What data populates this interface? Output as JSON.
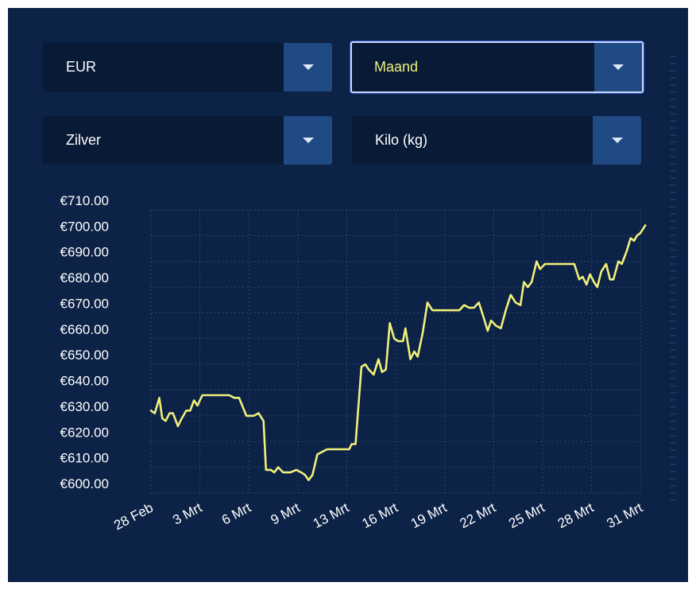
{
  "controls": {
    "currency": "EUR",
    "period": "Maand",
    "metal": "Zilver",
    "unit": "Kilo (kg)"
  },
  "colors": {
    "panel": "#0c2246",
    "line": "#f0f07a",
    "grid": "#2a4a72",
    "accent_button": "#1f4a83"
  },
  "icons": [
    "chevron-down-icon"
  ],
  "chart_data": {
    "type": "line",
    "title": "",
    "xlabel": "",
    "ylabel": "",
    "ylim": [
      600,
      710
    ],
    "grid": true,
    "legend": "none",
    "y_ticks": [
      "€600.00",
      "€610.00",
      "€620.00",
      "€630.00",
      "€640.00",
      "€650.00",
      "€660.00",
      "€670.00",
      "€680.00",
      "€690.00",
      "€700.00",
      "€710.00"
    ],
    "x_ticks": [
      "28 Feb",
      "3 Mrt",
      "6 Mrt",
      "9 Mrt",
      "13 Mrt",
      "16 Mrt",
      "19 Mrt",
      "22 Mrt",
      "25 Mrt",
      "28 Mrt",
      "31 Mrt"
    ],
    "x_tick_positions": [
      0,
      1,
      2,
      3,
      4,
      5,
      6,
      7,
      8,
      9,
      10
    ],
    "series": [
      {
        "name": "",
        "points": [
          [
            0.0,
            632
          ],
          [
            0.08,
            631
          ],
          [
            0.17,
            637
          ],
          [
            0.23,
            629
          ],
          [
            0.3,
            628
          ],
          [
            0.38,
            631
          ],
          [
            0.45,
            631
          ],
          [
            0.55,
            626
          ],
          [
            0.63,
            629
          ],
          [
            0.72,
            632
          ],
          [
            0.8,
            632
          ],
          [
            0.88,
            636
          ],
          [
            0.95,
            634
          ],
          [
            1.05,
            638
          ],
          [
            1.2,
            638
          ],
          [
            1.4,
            638
          ],
          [
            1.6,
            638
          ],
          [
            1.7,
            637
          ],
          [
            1.8,
            637
          ],
          [
            1.95,
            630
          ],
          [
            2.1,
            630
          ],
          [
            2.2,
            631
          ],
          [
            2.3,
            628
          ],
          [
            2.35,
            609
          ],
          [
            2.45,
            609
          ],
          [
            2.52,
            608
          ],
          [
            2.6,
            610
          ],
          [
            2.7,
            608
          ],
          [
            2.85,
            608
          ],
          [
            2.97,
            609
          ],
          [
            3.07,
            608
          ],
          [
            3.15,
            607
          ],
          [
            3.22,
            605
          ],
          [
            3.3,
            607
          ],
          [
            3.4,
            615
          ],
          [
            3.5,
            616
          ],
          [
            3.6,
            617
          ],
          [
            3.75,
            617
          ],
          [
            4.0,
            617
          ],
          [
            4.05,
            617
          ],
          [
            4.1,
            619
          ],
          [
            4.18,
            619
          ],
          [
            4.3,
            649
          ],
          [
            4.38,
            650
          ],
          [
            4.45,
            648
          ],
          [
            4.55,
            646
          ],
          [
            4.65,
            652
          ],
          [
            4.72,
            647
          ],
          [
            4.8,
            648
          ],
          [
            4.88,
            666
          ],
          [
            4.97,
            660
          ],
          [
            5.05,
            659
          ],
          [
            5.15,
            659
          ],
          [
            5.2,
            664
          ],
          [
            5.3,
            652
          ],
          [
            5.38,
            655
          ],
          [
            5.45,
            653
          ],
          [
            5.55,
            662
          ],
          [
            5.65,
            674
          ],
          [
            5.75,
            671
          ],
          [
            5.9,
            671
          ],
          [
            6.1,
            671
          ],
          [
            6.3,
            671
          ],
          [
            6.4,
            673
          ],
          [
            6.5,
            672
          ],
          [
            6.6,
            672
          ],
          [
            6.7,
            674
          ],
          [
            6.8,
            668
          ],
          [
            6.88,
            663
          ],
          [
            6.95,
            667
          ],
          [
            7.05,
            665
          ],
          [
            7.15,
            664
          ],
          [
            7.25,
            671
          ],
          [
            7.35,
            677
          ],
          [
            7.45,
            674
          ],
          [
            7.55,
            673
          ],
          [
            7.62,
            682
          ],
          [
            7.7,
            680
          ],
          [
            7.78,
            682
          ],
          [
            7.88,
            690
          ],
          [
            7.95,
            687
          ],
          [
            8.05,
            689
          ],
          [
            8.2,
            689
          ],
          [
            8.4,
            689
          ],
          [
            8.65,
            689
          ],
          [
            8.75,
            683
          ],
          [
            8.82,
            684
          ],
          [
            8.9,
            681
          ],
          [
            8.97,
            685
          ],
          [
            9.05,
            682
          ],
          [
            9.12,
            680
          ],
          [
            9.2,
            686
          ],
          [
            9.3,
            689
          ],
          [
            9.38,
            683
          ],
          [
            9.45,
            683
          ],
          [
            9.55,
            690
          ],
          [
            9.62,
            689
          ],
          [
            9.72,
            694
          ],
          [
            9.8,
            699
          ],
          [
            9.87,
            698
          ],
          [
            9.93,
            700
          ],
          [
            10.0,
            701
          ],
          [
            10.1,
            704
          ]
        ]
      }
    ]
  }
}
